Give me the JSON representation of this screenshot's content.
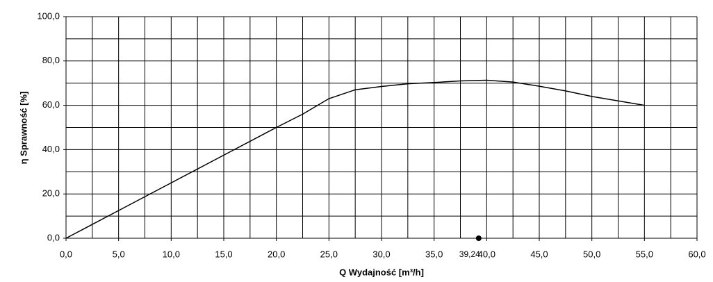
{
  "chart_data": {
    "type": "line",
    "x_label": "Q Wydajność [m³/h]",
    "y_label": "η Sprawność [%]",
    "x": [
      0,
      5,
      10,
      15,
      20,
      22.5,
      25,
      27.5,
      30,
      32.5,
      35,
      37.5,
      40,
      42.5,
      45,
      47.5,
      50,
      52.5,
      55
    ],
    "series": [
      {
        "color": "#000000",
        "values": [
          0,
          12.5,
          25,
          37.5,
          50,
          56,
          63,
          67,
          68.5,
          69.7,
          70.3,
          71,
          71.3,
          70.5,
          68.6,
          66.5,
          64,
          62,
          60
        ]
      }
    ],
    "xlim": [
      0,
      60
    ],
    "ylim": [
      0,
      100
    ],
    "xticks": [
      {
        "value": 0,
        "label": "0,0"
      },
      {
        "value": 5,
        "label": "5,0"
      },
      {
        "value": 10,
        "label": "10,0"
      },
      {
        "value": 15,
        "label": "15,0"
      },
      {
        "value": 20,
        "label": "20,0"
      },
      {
        "value": 25,
        "label": "25,0"
      },
      {
        "value": 30,
        "label": "30,0"
      },
      {
        "value": 35,
        "label": "35,0"
      },
      {
        "value": 40,
        "label": "40,0"
      },
      {
        "value": 45,
        "label": "45,0"
      },
      {
        "value": 50,
        "label": "50,0"
      },
      {
        "value": 55,
        "label": "55,0"
      },
      {
        "value": 60,
        "label": "60,0"
      }
    ],
    "yticks": [
      {
        "value": 0,
        "label": "0,0"
      },
      {
        "value": 20,
        "label": "20,0"
      },
      {
        "value": 40,
        "label": "40,0"
      },
      {
        "value": 60,
        "label": "60,0"
      },
      {
        "value": 80,
        "label": "80,0"
      },
      {
        "value": 100,
        "label": "100,0"
      }
    ],
    "xgrid": [
      2.5,
      7.5,
      12.5,
      17.5,
      22.5,
      27.5,
      32.5,
      37.5,
      42.5,
      47.5,
      52.5,
      57.5
    ],
    "ygrid": [
      10,
      30,
      50,
      70,
      90
    ],
    "grid": true,
    "marker": {
      "x": 39.24,
      "y": 0,
      "label": "39,24"
    }
  }
}
